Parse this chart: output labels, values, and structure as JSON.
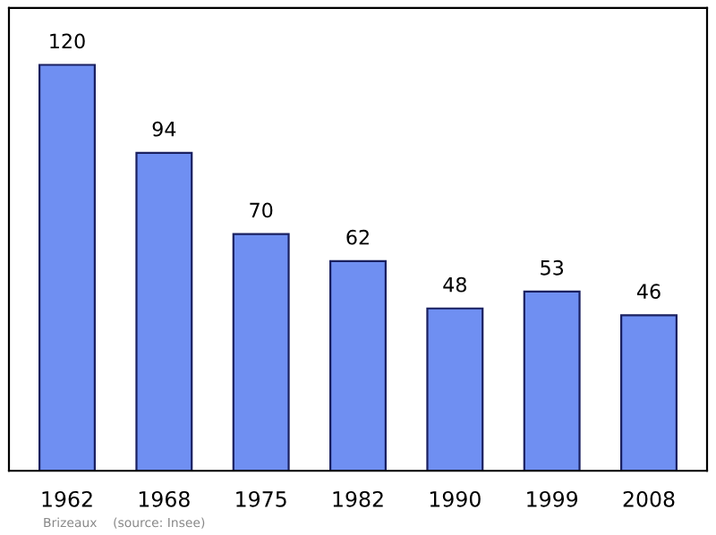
{
  "chart_data": {
    "type": "bar",
    "categories": [
      "1962",
      "1968",
      "1975",
      "1982",
      "1990",
      "1999",
      "2008"
    ],
    "values": [
      120,
      94,
      70,
      62,
      48,
      53,
      46
    ],
    "color": "#6f8ff2",
    "data_labels": true,
    "grid": false,
    "legend": false,
    "annotations": [
      "Brizeaux    (source: Insee)"
    ]
  }
}
